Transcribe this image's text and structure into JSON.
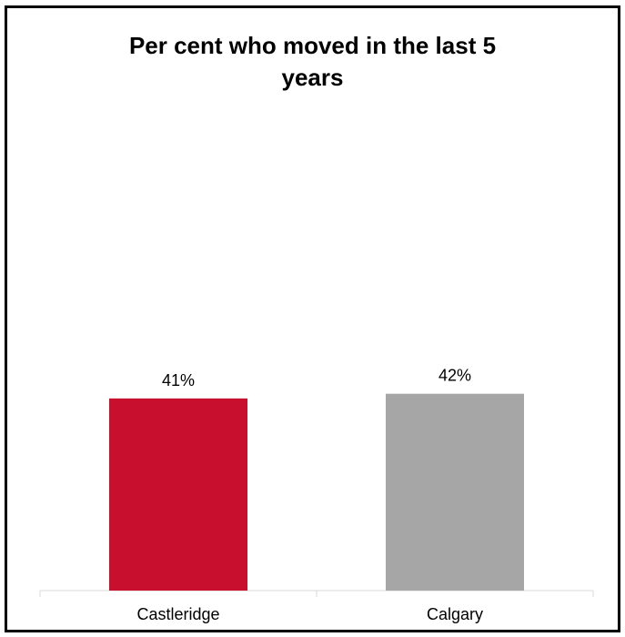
{
  "chart_data": {
    "type": "bar",
    "title_lines": [
      "Per cent who moved in the last 5",
      "years"
    ],
    "categories": [
      "Castleridge",
      "Calgary"
    ],
    "values": [
      41,
      42
    ],
    "data_labels": [
      "41%",
      "42%"
    ],
    "colors": [
      "#c8102e",
      "#a6a6a6"
    ],
    "unit": "%",
    "xlabel": "",
    "ylabel": "",
    "grid": false,
    "legend": "none"
  }
}
